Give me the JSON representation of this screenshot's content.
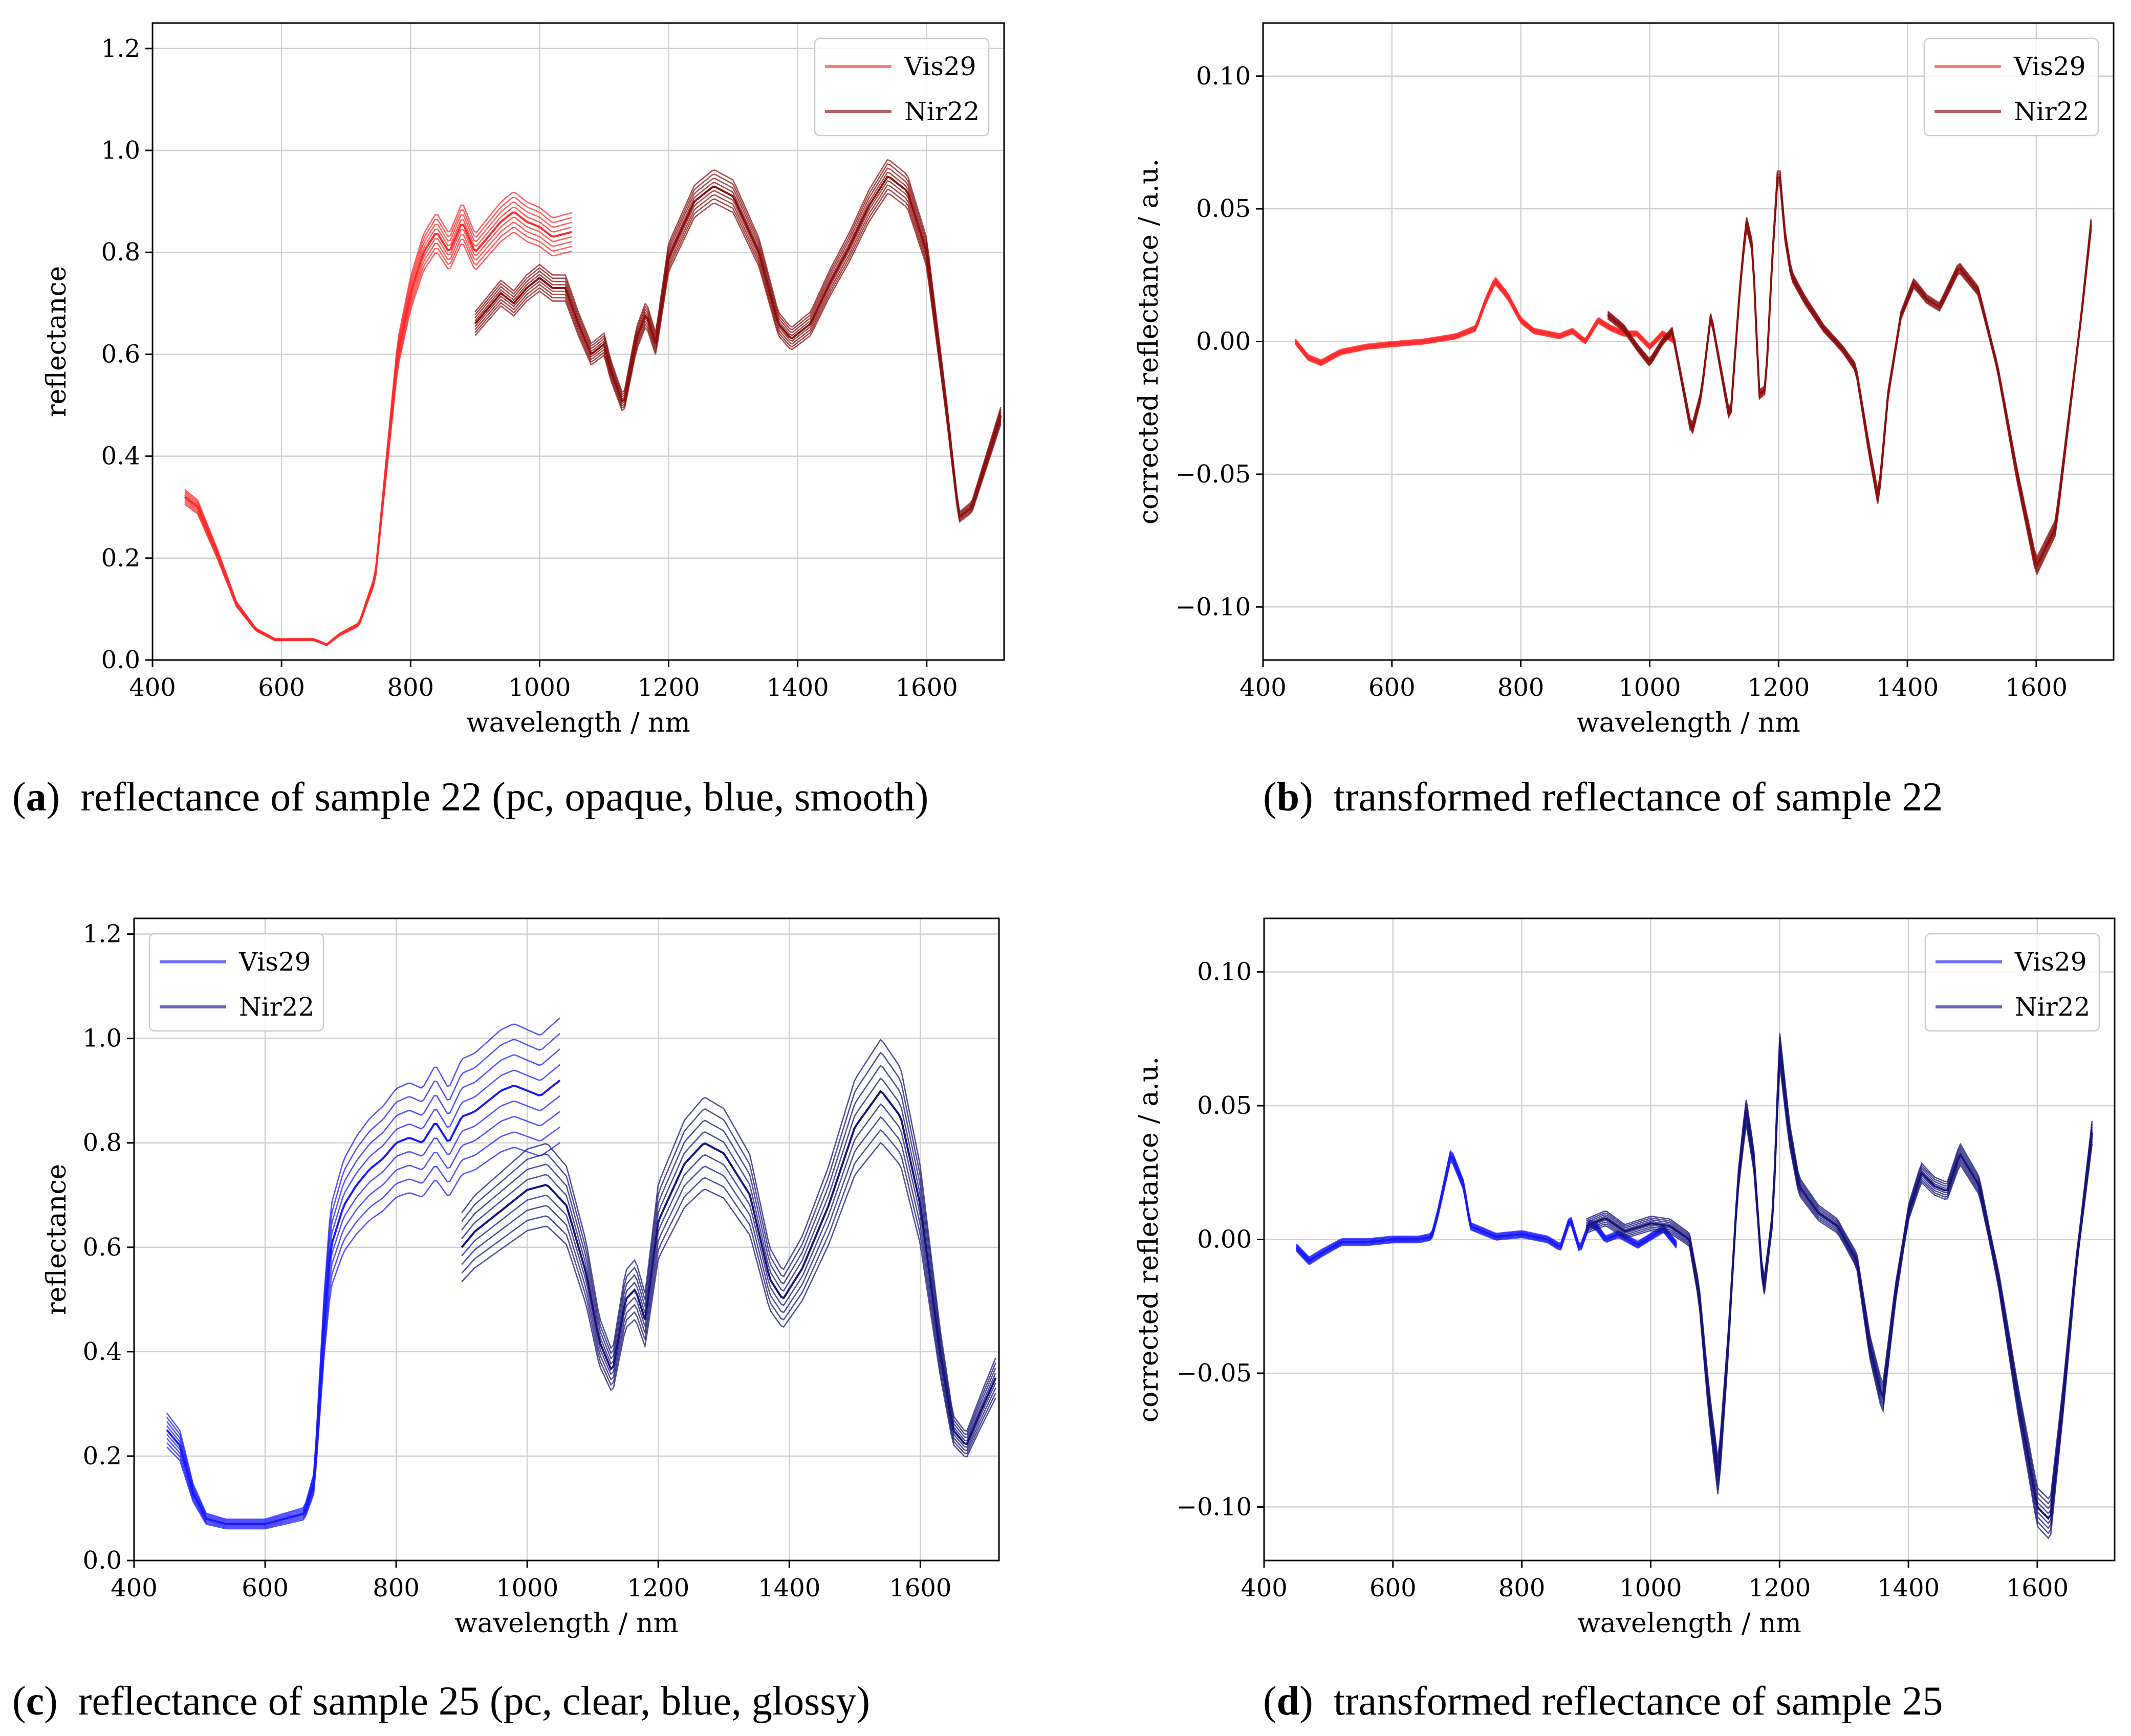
{
  "figure": {
    "captions": [
      {
        "label": "a",
        "text": "reflectance of sample 22 (pc, opaque, blue, smooth)"
      },
      {
        "label": "b",
        "text": "transformed reflectance of sample 22"
      },
      {
        "label": "c",
        "text": "reflectance of sample 25 (pc, clear, blue, glossy)"
      },
      {
        "label": "d",
        "text": "transformed reflectance of sample 25"
      }
    ]
  },
  "chart_data": [
    {
      "type": "line",
      "panel": "a",
      "xlabel": "wavelength / nm",
      "ylabel": "reflectance",
      "xlim": [
        400,
        1720
      ],
      "ylim": [
        0.0,
        1.25
      ],
      "xticks": [
        400,
        600,
        800,
        1000,
        1200,
        1400,
        1600
      ],
      "xtick_labels": [
        "400",
        "600",
        "800",
        "1000",
        "1200",
        "1400",
        "1600"
      ],
      "yticks": [
        0.0,
        0.2,
        0.4,
        0.6,
        0.8,
        1.0,
        1.2
      ],
      "ytick_labels": [
        "0.0",
        "0.2",
        "0.4",
        "0.6",
        "0.8",
        "1.0",
        "1.2"
      ],
      "grid": true,
      "legend": "top-right",
      "series": [
        {
          "name": "Vis29",
          "color": "#ff2a2a",
          "legend_color": "#ff7f7f",
          "x": [
            450,
            470,
            500,
            530,
            560,
            590,
            620,
            650,
            670,
            690,
            720,
            745,
            760,
            780,
            800,
            820,
            840,
            860,
            880,
            900,
            920,
            940,
            960,
            980,
            1000,
            1020,
            1050
          ],
          "y": [
            0.32,
            0.3,
            0.21,
            0.11,
            0.06,
            0.04,
            0.04,
            0.04,
            0.03,
            0.05,
            0.07,
            0.16,
            0.35,
            0.6,
            0.72,
            0.8,
            0.84,
            0.8,
            0.86,
            0.8,
            0.83,
            0.86,
            0.88,
            0.86,
            0.85,
            0.83,
            0.84
          ],
          "spread": 0.045
        },
        {
          "name": "Nir22",
          "color": "#8b1010",
          "legend_color": "#b86060",
          "x": [
            900,
            920,
            940,
            960,
            980,
            1000,
            1020,
            1040,
            1060,
            1080,
            1100,
            1110,
            1130,
            1150,
            1165,
            1180,
            1200,
            1240,
            1270,
            1300,
            1340,
            1370,
            1390,
            1420,
            1450,
            1480,
            1510,
            1540,
            1570,
            1600,
            1630,
            1650,
            1670,
            1690,
            1715
          ],
          "y": [
            0.66,
            0.69,
            0.72,
            0.7,
            0.73,
            0.75,
            0.73,
            0.73,
            0.66,
            0.6,
            0.62,
            0.57,
            0.5,
            0.63,
            0.68,
            0.62,
            0.79,
            0.9,
            0.93,
            0.91,
            0.8,
            0.66,
            0.63,
            0.66,
            0.74,
            0.81,
            0.89,
            0.95,
            0.92,
            0.8,
            0.5,
            0.28,
            0.3,
            0.38,
            0.48
          ],
          "spread": 0.035
        }
      ]
    },
    {
      "type": "line",
      "panel": "b",
      "xlabel": "wavelength / nm",
      "ylabel": "corrected reflectance / a.u.",
      "xlim": [
        400,
        1720
      ],
      "ylim": [
        -0.12,
        0.12
      ],
      "xticks": [
        400,
        600,
        800,
        1000,
        1200,
        1400,
        1600
      ],
      "xtick_labels": [
        "400",
        "600",
        "800",
        "1000",
        "1200",
        "1400",
        "1600"
      ],
      "yticks": [
        -0.1,
        -0.05,
        0.0,
        0.05,
        0.1
      ],
      "ytick_labels": [
        "−0.10",
        "−0.05",
        "0.00",
        "0.05",
        "0.10"
      ],
      "grid": true,
      "legend": "top-right",
      "series": [
        {
          "name": "Vis29",
          "color": "#ff2a2a",
          "legend_color": "#ff7f7f",
          "x": [
            450,
            470,
            490,
            520,
            560,
            600,
            650,
            700,
            730,
            745,
            760,
            780,
            800,
            820,
            840,
            860,
            880,
            900,
            920,
            940,
            960,
            980,
            1000,
            1020,
            1040
          ],
          "y": [
            0.0,
            -0.006,
            -0.008,
            -0.004,
            -0.002,
            -0.001,
            0.0,
            0.002,
            0.005,
            0.015,
            0.023,
            0.017,
            0.008,
            0.004,
            0.003,
            0.002,
            0.004,
            0.0,
            0.008,
            0.005,
            0.003,
            0.003,
            -0.002,
            0.003,
            0.0
          ],
          "spread": 0.003
        },
        {
          "name": "Nir22",
          "color": "#8b1010",
          "legend_color": "#b86060",
          "x": [
            935,
            960,
            980,
            1000,
            1020,
            1035,
            1050,
            1065,
            1080,
            1095,
            1110,
            1125,
            1140,
            1150,
            1160,
            1170,
            1180,
            1190,
            1200,
            1210,
            1220,
            1240,
            1270,
            1300,
            1320,
            1340,
            1355,
            1370,
            1390,
            1410,
            1430,
            1450,
            1480,
            1510,
            1540,
            1570,
            1600,
            1630,
            1650,
            1670,
            1685
          ],
          "y": [
            0.01,
            0.005,
            -0.002,
            -0.008,
            0.0,
            0.004,
            -0.015,
            -0.034,
            -0.02,
            0.01,
            -0.01,
            -0.03,
            0.02,
            0.045,
            0.035,
            -0.02,
            -0.018,
            0.03,
            0.068,
            0.04,
            0.025,
            0.016,
            0.005,
            -0.003,
            -0.01,
            -0.04,
            -0.06,
            -0.02,
            0.01,
            0.022,
            0.016,
            0.013,
            0.028,
            0.019,
            -0.01,
            -0.05,
            -0.085,
            -0.07,
            -0.03,
            0.01,
            0.044
          ],
          "spread": 0.004
        }
      ]
    },
    {
      "type": "line",
      "panel": "c",
      "xlabel": "wavelength / nm",
      "ylabel": "reflectance",
      "xlim": [
        400,
        1720
      ],
      "ylim": [
        0.0,
        1.23
      ],
      "xticks": [
        400,
        600,
        800,
        1000,
        1200,
        1400,
        1600
      ],
      "xtick_labels": [
        "400",
        "600",
        "800",
        "1000",
        "1200",
        "1400",
        "1600"
      ],
      "yticks": [
        0.0,
        0.2,
        0.4,
        0.6,
        0.8,
        1.0,
        1.2
      ],
      "ytick_labels": [
        "0.0",
        "0.2",
        "0.4",
        "0.6",
        "0.8",
        "1.0",
        "1.2"
      ],
      "grid": true,
      "legend": "top-left",
      "series": [
        {
          "name": "Vis29",
          "color": "#1a1aff",
          "legend_color": "#6f6ff5",
          "x": [
            450,
            470,
            490,
            510,
            540,
            570,
            600,
            630,
            660,
            675,
            690,
            700,
            720,
            740,
            760,
            780,
            800,
            820,
            840,
            860,
            880,
            900,
            920,
            940,
            960,
            980,
            1000,
            1020,
            1050
          ],
          "y": [
            0.25,
            0.22,
            0.13,
            0.08,
            0.07,
            0.07,
            0.07,
            0.08,
            0.09,
            0.15,
            0.45,
            0.6,
            0.68,
            0.72,
            0.75,
            0.77,
            0.8,
            0.81,
            0.8,
            0.84,
            0.8,
            0.85,
            0.86,
            0.88,
            0.9,
            0.91,
            0.9,
            0.89,
            0.92
          ],
          "spread": 0.13
        },
        {
          "name": "Nir22",
          "color": "#15157a",
          "legend_color": "#6565b5",
          "x": [
            900,
            920,
            950,
            980,
            1000,
            1030,
            1060,
            1090,
            1110,
            1130,
            1150,
            1165,
            1180,
            1200,
            1240,
            1270,
            1300,
            1340,
            1370,
            1390,
            1420,
            1460,
            1500,
            1540,
            1570,
            1600,
            1630,
            1650,
            1670,
            1690,
            1715
          ],
          "y": [
            0.6,
            0.63,
            0.66,
            0.69,
            0.71,
            0.72,
            0.68,
            0.55,
            0.42,
            0.36,
            0.5,
            0.52,
            0.46,
            0.65,
            0.76,
            0.8,
            0.78,
            0.7,
            0.54,
            0.5,
            0.56,
            0.68,
            0.83,
            0.9,
            0.85,
            0.68,
            0.4,
            0.25,
            0.22,
            0.28,
            0.35
          ],
          "spread": 0.11
        }
      ]
    },
    {
      "type": "line",
      "panel": "d",
      "xlabel": "wavelength / nm",
      "ylabel": "corrected reflectance / a.u.",
      "xlim": [
        400,
        1720
      ],
      "ylim": [
        -0.12,
        0.12
      ],
      "xticks": [
        400,
        600,
        800,
        1000,
        1200,
        1400,
        1600
      ],
      "xtick_labels": [
        "400",
        "600",
        "800",
        "1000",
        "1200",
        "1400",
        "1600"
      ],
      "yticks": [
        -0.1,
        -0.05,
        0.0,
        0.05,
        0.1
      ],
      "ytick_labels": [
        "−0.10",
        "−0.05",
        "0.00",
        "0.05",
        "0.10"
      ],
      "grid": true,
      "legend": "top-right",
      "series": [
        {
          "name": "Vis29",
          "color": "#1a1aff",
          "legend_color": "#6f6ff5",
          "x": [
            450,
            470,
            490,
            520,
            560,
            600,
            640,
            660,
            670,
            690,
            710,
            720,
            740,
            760,
            800,
            840,
            860,
            875,
            890,
            905,
            915,
            930,
            950,
            980,
            1000,
            1020,
            1040
          ],
          "y": [
            -0.003,
            -0.008,
            -0.005,
            -0.001,
            -0.001,
            0.0,
            0.0,
            0.001,
            0.01,
            0.032,
            0.02,
            0.005,
            0.003,
            0.001,
            0.002,
            0.0,
            -0.003,
            0.008,
            -0.004,
            0.006,
            0.005,
            0.0,
            0.002,
            -0.002,
            0.001,
            0.004,
            -0.002
          ],
          "spread": 0.004
        },
        {
          "name": "Nir22",
          "color": "#15157a",
          "legend_color": "#6565b5",
          "x": [
            900,
            930,
            960,
            1000,
            1030,
            1060,
            1075,
            1090,
            1105,
            1120,
            1135,
            1148,
            1160,
            1175,
            1190,
            1200,
            1215,
            1230,
            1260,
            1290,
            1320,
            1340,
            1360,
            1380,
            1400,
            1420,
            1440,
            1460,
            1480,
            1510,
            1540,
            1570,
            1600,
            1620,
            1640,
            1660,
            1685
          ],
          "y": [
            0.005,
            0.008,
            0.003,
            0.006,
            0.005,
            0.0,
            -0.02,
            -0.06,
            -0.09,
            -0.04,
            0.02,
            0.048,
            0.03,
            -0.02,
            0.01,
            0.072,
            0.04,
            0.02,
            0.01,
            0.005,
            -0.008,
            -0.04,
            -0.06,
            -0.02,
            0.01,
            0.025,
            0.02,
            0.018,
            0.032,
            0.02,
            -0.015,
            -0.06,
            -0.1,
            -0.105,
            -0.06,
            -0.01,
            0.04
          ],
          "spread": 0.008
        }
      ]
    }
  ]
}
